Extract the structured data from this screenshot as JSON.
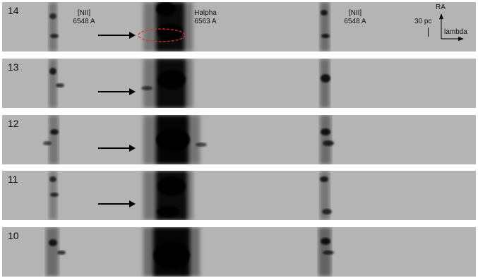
{
  "panels": [
    {
      "number": "14",
      "arrow": true,
      "ellipse": true
    },
    {
      "number": "13",
      "arrow": true,
      "ellipse": false
    },
    {
      "number": "12",
      "arrow": true,
      "ellipse": false
    },
    {
      "number": "11",
      "arrow": true,
      "ellipse": false
    },
    {
      "number": "10",
      "arrow": false,
      "ellipse": false
    }
  ],
  "labels": {
    "nii_left": {
      "line1": "[NII]",
      "line2": "6548 A"
    },
    "halpha": {
      "line1": "Halpha",
      "line2": "6563 A"
    },
    "nii_right": {
      "line1": "[NII]",
      "line2": "6548 A"
    },
    "scale": "30 pc",
    "axis_ra": "RA",
    "axis_lambda": "lambda"
  },
  "colors": {
    "background": "#b4b4b4",
    "emission": "#000000",
    "arrow": "#000000",
    "ellipse": "#e0302a"
  }
}
